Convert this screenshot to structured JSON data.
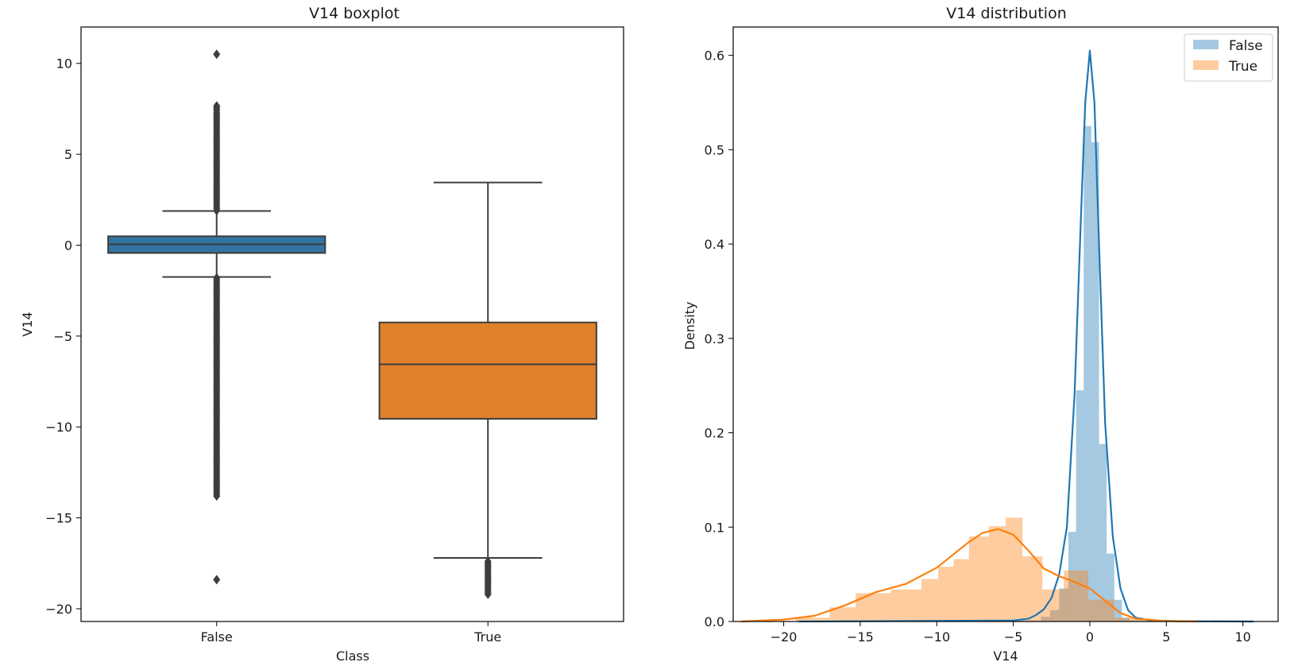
{
  "chart_data": [
    {
      "type": "box",
      "title": "V14 boxplot",
      "xlabel": "Class",
      "ylabel": "V14",
      "categories": [
        "False",
        "True"
      ],
      "ylim": [
        -20.7,
        12.0
      ],
      "yticks": [
        10,
        5,
        0,
        -5,
        -10,
        -15,
        -20
      ],
      "ytick_labels": [
        "10",
        "5",
        "0",
        "−5",
        "−10",
        "−15",
        "−20"
      ],
      "grid": false,
      "boxes": [
        {
          "name": "False",
          "color": "#3274a1",
          "q1": -0.43,
          "median": 0.05,
          "q3": 0.49,
          "whisker_low": -1.75,
          "whisker_high": 1.88,
          "outlier_ranges": [
            [
              1.9,
              7.7
            ],
            [
              -1.8,
              -13.8
            ]
          ],
          "outliers": [
            10.5,
            -18.4
          ]
        },
        {
          "name": "True",
          "color": "#e1812c",
          "q1": -9.55,
          "median": -6.55,
          "q3": -4.25,
          "whisker_low": -17.2,
          "whisker_high": 3.45,
          "outlier_ranges": [
            [
              -17.4,
              -19.2
            ]
          ],
          "outliers": []
        }
      ]
    },
    {
      "type": "histogram",
      "title": "V14 distribution",
      "xlabel": "V14",
      "ylabel": "Density",
      "xlim": [
        -23.3,
        12.3
      ],
      "ylim": [
        0,
        0.63
      ],
      "xticks": [
        -20,
        -15,
        -10,
        -5,
        0,
        5,
        10
      ],
      "xtick_labels": [
        "−20",
        "−15",
        "−10",
        "−5",
        "0",
        "5",
        "10"
      ],
      "yticks": [
        0.0,
        0.1,
        0.2,
        0.3,
        0.4,
        0.5,
        0.6
      ],
      "ytick_labels": [
        "0.0",
        "0.1",
        "0.2",
        "0.3",
        "0.4",
        "0.5",
        "0.6"
      ],
      "legend_position": "top-right",
      "grid": false,
      "series": [
        {
          "name": "False",
          "color": "#1f77b4",
          "bin_edges": [
            -19.2,
            -17.6,
            -16.0,
            -14.4,
            -12.8,
            -11.2,
            -9.6,
            -8.0,
            -6.4,
            -4.8,
            -3.2,
            -2.6,
            -2.0,
            -1.4,
            -0.9,
            -0.4,
            0.1,
            0.6,
            1.1,
            1.6,
            2.1,
            2.6,
            3.5,
            5.0,
            7.0,
            10.7
          ],
          "densities": [
            0.0005,
            0.0005,
            0.0005,
            0.0005,
            0.0005,
            0.0005,
            0.0005,
            0.0005,
            0.0005,
            0.001,
            0.005,
            0.012,
            0.035,
            0.095,
            0.245,
            0.525,
            0.508,
            0.188,
            0.072,
            0.023,
            0.004,
            0.001,
            0.0005,
            0.0005,
            0.0005
          ],
          "kde_x": [
            -19.0,
            -5.0,
            -4.0,
            -3.5,
            -3.0,
            -2.5,
            -2.0,
            -1.5,
            -1.0,
            -0.6,
            -0.3,
            0.0,
            0.3,
            0.6,
            1.0,
            1.5,
            2.0,
            2.5,
            3.0,
            4.0,
            6.0,
            10.7
          ],
          "kde_y": [
            0.0,
            0.001,
            0.003,
            0.007,
            0.013,
            0.025,
            0.05,
            0.1,
            0.24,
            0.42,
            0.55,
            0.605,
            0.55,
            0.4,
            0.21,
            0.09,
            0.035,
            0.012,
            0.004,
            0.001,
            0.0003,
            0.0
          ]
        },
        {
          "name": "True",
          "color": "#ff7f0e",
          "bin_edges": [
            -19.2,
            -17.0,
            -15.3,
            -13.0,
            -11.0,
            -9.9,
            -8.9,
            -7.9,
            -6.6,
            -5.5,
            -4.4,
            -3.1,
            -1.7,
            -0.1,
            1.6,
            3.5,
            5.0,
            7.0
          ],
          "densities": [
            0.004,
            0.015,
            0.03,
            0.034,
            0.045,
            0.058,
            0.066,
            0.09,
            0.101,
            0.11,
            0.069,
            0.034,
            0.054,
            0.023,
            0.004,
            0.001,
            0.001
          ],
          "kde_x": [
            -22.8,
            -20.0,
            -18.0,
            -16.0,
            -14.0,
            -12.0,
            -10.0,
            -8.0,
            -7.0,
            -6.0,
            -5.0,
            -4.0,
            -3.0,
            -2.0,
            -1.0,
            0.0,
            1.0,
            2.0,
            3.0,
            5.0,
            7.0
          ],
          "kde_y": [
            0.0,
            0.002,
            0.006,
            0.017,
            0.031,
            0.04,
            0.057,
            0.083,
            0.094,
            0.098,
            0.092,
            0.075,
            0.056,
            0.048,
            0.042,
            0.035,
            0.022,
            0.009,
            0.003,
            0.0005,
            0.0
          ]
        }
      ]
    }
  ]
}
